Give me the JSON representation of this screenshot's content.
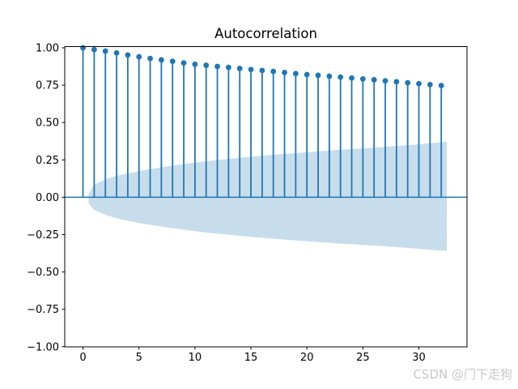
{
  "watermark": {
    "text": "CSDN @门下走狗",
    "color": "#c8c8c8"
  },
  "chart_data": {
    "type": "stem",
    "title": "Autocorrelation",
    "xlabel": "",
    "ylabel": "",
    "xlim": [
      -1.63,
      34.3
    ],
    "ylim": [
      -1.0,
      1.01
    ],
    "grid": false,
    "legend": null,
    "x": [
      0,
      1,
      2,
      3,
      4,
      5,
      6,
      7,
      8,
      9,
      10,
      11,
      12,
      13,
      14,
      15,
      16,
      17,
      18,
      19,
      20,
      21,
      22,
      23,
      24,
      25,
      26,
      27,
      28,
      29,
      30,
      31,
      32
    ],
    "values": [
      1.0,
      0.988,
      0.978,
      0.966,
      0.952,
      0.94,
      0.929,
      0.919,
      0.91,
      0.899,
      0.89,
      0.883,
      0.875,
      0.869,
      0.862,
      0.855,
      0.848,
      0.842,
      0.835,
      0.828,
      0.821,
      0.816,
      0.81,
      0.804,
      0.798,
      0.792,
      0.786,
      0.779,
      0.773,
      0.766,
      0.76,
      0.754,
      0.748
    ],
    "confidence_band": {
      "x": [
        0.5,
        1,
        2,
        3,
        4,
        5,
        6,
        7,
        8,
        9,
        10,
        11,
        12,
        13,
        14,
        15,
        16,
        17,
        18,
        19,
        20,
        21,
        22,
        23,
        24,
        25,
        26,
        27,
        28,
        29,
        30,
        31,
        32,
        32.5
      ],
      "upper": [
        0.02,
        0.085,
        0.12,
        0.143,
        0.16,
        0.175,
        0.188,
        0.2,
        0.211,
        0.222,
        0.232,
        0.241,
        0.249,
        0.257,
        0.264,
        0.271,
        0.278,
        0.284,
        0.29,
        0.296,
        0.302,
        0.307,
        0.313,
        0.318,
        0.322,
        0.327,
        0.332,
        0.337,
        0.343,
        0.349,
        0.355,
        0.362,
        0.368,
        0.372
      ],
      "lower": [
        -0.04,
        -0.085,
        -0.118,
        -0.14,
        -0.157,
        -0.172,
        -0.185,
        -0.196,
        -0.207,
        -0.217,
        -0.227,
        -0.236,
        -0.244,
        -0.251,
        -0.258,
        -0.265,
        -0.271,
        -0.277,
        -0.283,
        -0.289,
        -0.294,
        -0.3,
        -0.305,
        -0.31,
        -0.314,
        -0.319,
        -0.323,
        -0.328,
        -0.334,
        -0.339,
        -0.345,
        -0.351,
        -0.357,
        -0.36
      ]
    },
    "xtick_values": [
      0,
      5,
      10,
      15,
      20,
      25,
      30
    ],
    "xtick_labels": [
      "0",
      "5",
      "10",
      "15",
      "20",
      "25",
      "30"
    ],
    "ytick_values": [
      1.0,
      0.75,
      0.5,
      0.25,
      0.0,
      -0.25,
      -0.5,
      -0.75,
      -1.0
    ],
    "ytick_labels": [
      "1.00",
      "0.75",
      "0.50",
      "0.25",
      "0.00",
      "−0.25",
      "−0.50",
      "−0.75",
      "−1.00"
    ],
    "colors": {
      "line": "#1f77b4",
      "marker": "#1f77b4",
      "zero_line": "#1f77b4",
      "band": "#c7ddec",
      "axis": "#000000"
    }
  }
}
